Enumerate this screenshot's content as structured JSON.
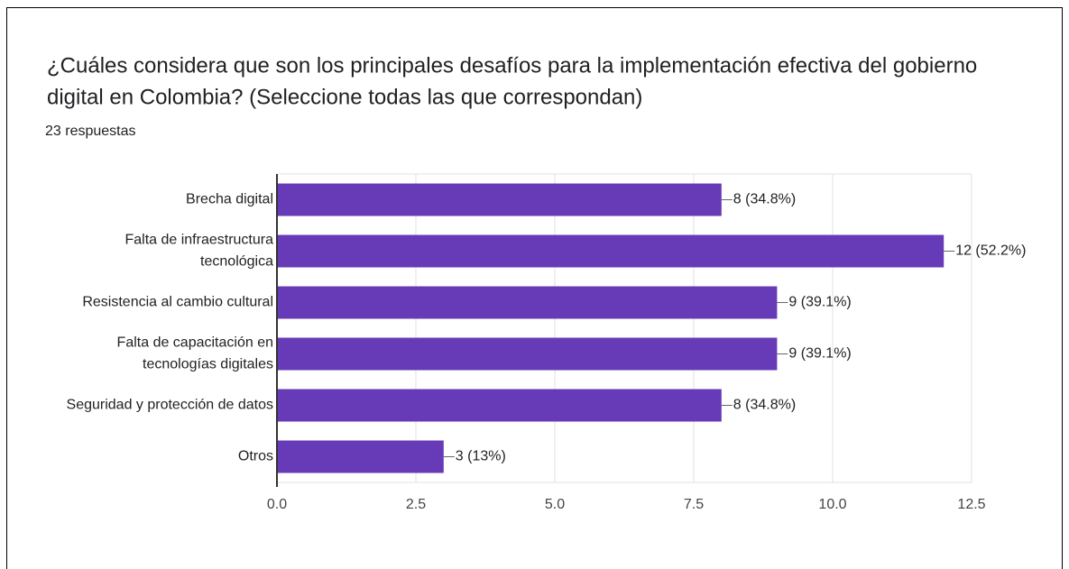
{
  "chart_data": {
    "type": "bar",
    "orientation": "horizontal",
    "title": "¿Cuáles considera que son los principales desafíos para la implementación efectiva del gobierno digital en Colombia? (Seleccione todas las que correspondan)",
    "subtitle": "23 respuestas",
    "categories": [
      "Brecha digital",
      "Falta de infraestructura tecnológica",
      "Resistencia al cambio cultural",
      "Falta de capacitación en tecnologías digitales",
      "Seguridad y protección de datos",
      "Otros"
    ],
    "values": [
      8,
      12,
      9,
      9,
      8,
      3
    ],
    "value_labels": [
      "8 (34.8%)",
      "12 (52.2%)",
      "9 (39.1%)",
      "9 (39.1%)",
      "8 (34.8%)",
      "3 (13%)"
    ],
    "color": "#673ab7",
    "xlim": [
      0,
      12.5
    ],
    "xticks": [
      {
        "value": 0,
        "label": "0.0"
      },
      2.5,
      {
        "value": 5,
        "label": "5.0"
      },
      7.5,
      {
        "value": 10,
        "label": "10.0"
      },
      12.5
    ],
    "grid": true
  }
}
